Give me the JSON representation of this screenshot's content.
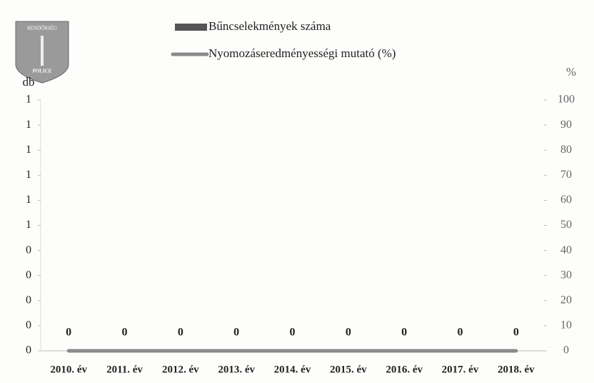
{
  "logo": {
    "top": "RENDŐRSÉG",
    "bottom": "POLICE"
  },
  "chart_data": {
    "type": "bar",
    "categories": [
      "2010. év",
      "2011. év",
      "2012. év",
      "2013. év",
      "2014. év",
      "2015. év",
      "2016. év",
      "2017. év",
      "2018. év"
    ],
    "y_label": "db",
    "y2_label": "%",
    "ylim": [
      0,
      1
    ],
    "yticks": [
      {
        "value": 0,
        "label": "0"
      },
      {
        "value": 0.1,
        "label": "0"
      },
      {
        "value": 0.2,
        "label": "0"
      },
      {
        "value": 0.3,
        "label": "0"
      },
      {
        "value": 0.4,
        "label": "0"
      },
      {
        "value": 0.5,
        "label": "1"
      },
      {
        "value": 0.6,
        "label": "1"
      },
      {
        "value": 0.7,
        "label": "1"
      },
      {
        "value": 0.8,
        "label": "1"
      },
      {
        "value": 0.9,
        "label": "1"
      },
      {
        "value": 1,
        "label": "1"
      }
    ],
    "y2lim": [
      0,
      100
    ],
    "y2ticks": [
      0,
      10,
      20,
      30,
      40,
      50,
      60,
      70,
      80,
      90,
      100
    ],
    "series": [
      {
        "name": "Bűncselekmények száma",
        "type": "bar",
        "color": "#555555",
        "values": [
          0,
          0,
          0,
          0,
          0,
          0,
          0,
          0,
          0
        ]
      },
      {
        "name": "Nyomozáseredményességi mutató (%)",
        "type": "line",
        "axis": "y2",
        "color": "#8a8a8a",
        "values": [
          0,
          0,
          0,
          0,
          0,
          0,
          0,
          0,
          0
        ]
      }
    ]
  }
}
